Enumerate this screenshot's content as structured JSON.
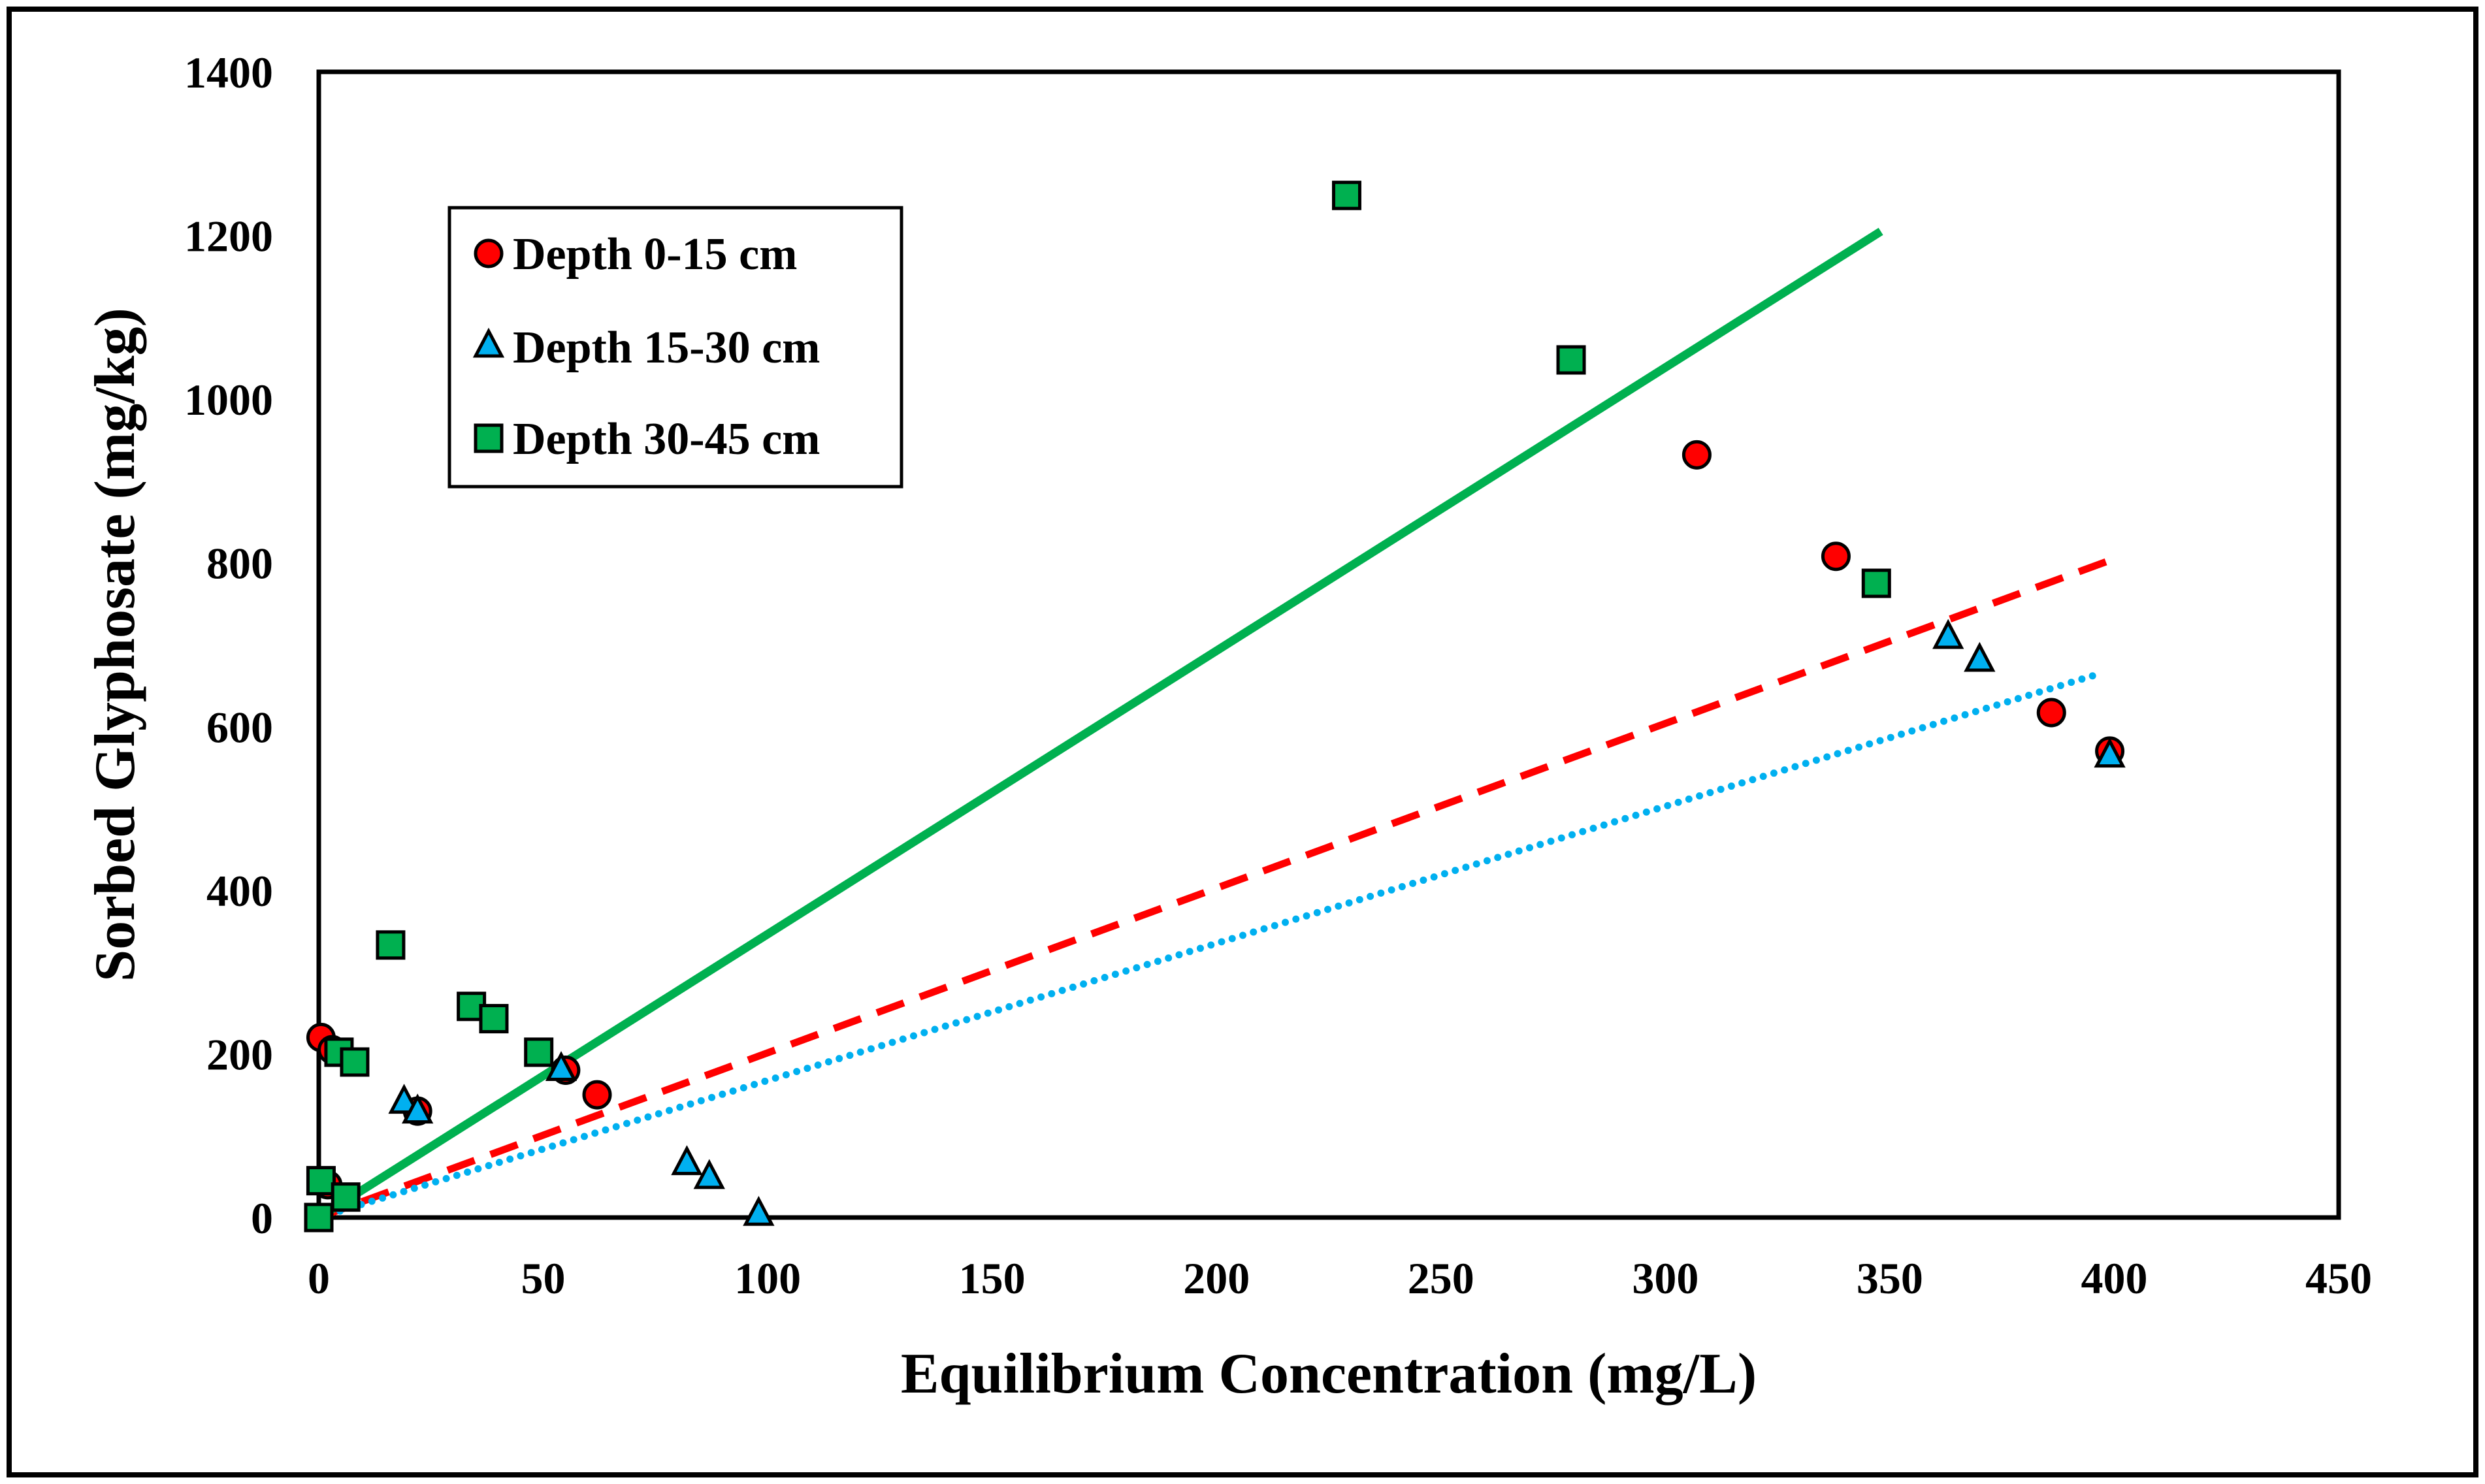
{
  "chart_data": {
    "type": "scatter",
    "title": "",
    "xlabel": "Equilibrium Concentration (mg/L)",
    "ylabel": "Sorbed Glyphosate (mg/kg)",
    "xlim": [
      0,
      450
    ],
    "ylim": [
      0,
      1400
    ],
    "xticks": [
      0,
      50,
      100,
      150,
      200,
      250,
      300,
      350,
      400,
      450
    ],
    "yticks": [
      0,
      200,
      400,
      600,
      800,
      1000,
      1200,
      1400
    ],
    "grid": false,
    "legend_position": "top-left",
    "series": [
      {
        "name": "Depth 0-15 cm",
        "marker": "circle",
        "color": "#ff0000",
        "points": [
          [
            0.5,
            220
          ],
          [
            3,
            205
          ],
          [
            22,
            130
          ],
          [
            55,
            180
          ],
          [
            62,
            150
          ],
          [
            307,
            932
          ],
          [
            338,
            808
          ],
          [
            386,
            617
          ],
          [
            399,
            570
          ],
          [
            2,
            40
          ]
        ],
        "trendline": {
          "style": "dashed",
          "color": "#ff0000",
          "from": [
            0,
            0
          ],
          "to": [
            400,
            805
          ]
        }
      },
      {
        "name": "Depth 15-30 cm",
        "marker": "triangle",
        "color": "#00b0f0",
        "points": [
          [
            19,
            140
          ],
          [
            22,
            128
          ],
          [
            54,
            180
          ],
          [
            82,
            65
          ],
          [
            87,
            48
          ],
          [
            98,
            3
          ],
          [
            363,
            708
          ],
          [
            370,
            680
          ],
          [
            399,
            563
          ]
        ],
        "trendline": {
          "style": "dotted",
          "color": "#00b0f0",
          "from": [
            0,
            0
          ],
          "to": [
            397,
            665
          ]
        }
      },
      {
        "name": "Depth 30-45 cm",
        "marker": "square",
        "color": "#00b050",
        "points": [
          [
            0,
            0
          ],
          [
            0.5,
            45
          ],
          [
            6,
            25
          ],
          [
            16,
            333
          ],
          [
            34,
            258
          ],
          [
            39,
            243
          ],
          [
            49,
            202
          ],
          [
            4.5,
            202
          ],
          [
            8,
            190
          ],
          [
            229,
            1249
          ],
          [
            279,
            1048
          ],
          [
            347,
            775
          ]
        ],
        "trendline": {
          "style": "solid",
          "color": "#00b050",
          "from": [
            0,
            0
          ],
          "to": [
            348,
            1205
          ]
        }
      }
    ]
  }
}
